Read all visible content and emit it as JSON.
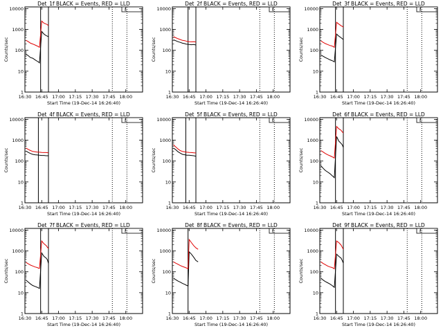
{
  "figure": {
    "xlabel": "Start Time (19-Dec-14 16:26:40)",
    "ylabel": "Counts/sec",
    "legend_mark": "L",
    "x_ticks": [
      "16:30",
      "16:45",
      "17:00",
      "17:15",
      "17:30",
      "17:45",
      "18:00"
    ],
    "y_ticks": [
      "1",
      "10",
      "100",
      "1000",
      "10000"
    ],
    "colors": {
      "events": "#000000",
      "lld": "#e00000"
    }
  },
  "chart_data": [
    {
      "type": "line",
      "title": "Det_1f BLACK = Events, RED = LLD",
      "xlim": [
        "16:30",
        "18:15"
      ],
      "ylim": [
        1,
        12000
      ],
      "yscale": "log",
      "x": [
        "16:31",
        "16:33",
        "16:35",
        "16:37",
        "16:39",
        "16:41",
        "16:42",
        "16:43",
        "16:45",
        "16:47",
        "16:49",
        "16:50",
        "16:51"
      ],
      "series": [
        {
          "name": "Events",
          "values": [
            65,
            55,
            45,
            42,
            35,
            30,
            28,
            25,
            800,
            600,
            500,
            480,
            450
          ]
        },
        {
          "name": "LLD",
          "values": [
            300,
            260,
            220,
            200,
            180,
            160,
            150,
            140,
            2500,
            2000,
            1800,
            1700,
            1500
          ]
        }
      ],
      "vlines_solid": [
        "16:44",
        "16:51"
      ],
      "vlines_dotted": [
        "17:48",
        "18:01"
      ]
    },
    {
      "type": "line",
      "title": "Det_2f BLACK = Events, RED = LLD",
      "xlim": [
        "16:30",
        "18:15"
      ],
      "ylim": [
        1,
        12000
      ],
      "yscale": "log",
      "x": [
        "16:31",
        "16:33",
        "16:35",
        "16:37",
        "16:39",
        "16:41",
        "16:42",
        "16:43",
        "16:45",
        "16:47",
        "16:49",
        "16:50",
        "16:51"
      ],
      "series": [
        {
          "name": "Events",
          "values": [
            320,
            290,
            260,
            240,
            220,
            210,
            200,
            195,
            190,
            185,
            190,
            185,
            180
          ]
        },
        {
          "name": "LLD",
          "values": [
            450,
            400,
            360,
            330,
            300,
            290,
            280,
            270,
            260,
            255,
            260,
            255,
            250
          ]
        }
      ],
      "vlines_solid": [
        "16:44",
        "16:51"
      ],
      "vlines_dotted": [
        "17:48",
        "18:01"
      ]
    },
    {
      "type": "line",
      "title": "Det_3f BLACK = Events, RED = LLD",
      "xlim": [
        "16:30",
        "18:15"
      ],
      "ylim": [
        1,
        12000
      ],
      "yscale": "log",
      "x": [
        "16:31",
        "16:33",
        "16:35",
        "16:37",
        "16:39",
        "16:41",
        "16:42",
        "16:43",
        "16:45",
        "16:47",
        "16:49",
        "16:50",
        "16:51"
      ],
      "series": [
        {
          "name": "Events",
          "values": [
            60,
            52,
            45,
            40,
            35,
            32,
            30,
            28,
            600,
            480,
            400,
            360,
            330
          ]
        },
        {
          "name": "LLD",
          "values": [
            280,
            240,
            210,
            190,
            170,
            160,
            150,
            140,
            2200,
            1800,
            1500,
            1400,
            1300
          ]
        }
      ],
      "vlines_solid": [
        "16:44",
        "16:51"
      ],
      "vlines_dotted": [
        "17:48",
        "18:01"
      ]
    },
    {
      "type": "line",
      "title": "Det_4f BLACK = Events, RED = LLD",
      "xlim": [
        "16:30",
        "18:15"
      ],
      "ylim": [
        1,
        12000
      ],
      "yscale": "log",
      "x": [
        "16:31",
        "16:33",
        "16:35",
        "16:37",
        "16:39",
        "16:41",
        "16:43",
        "16:45",
        "16:47",
        "16:49",
        "16:51"
      ],
      "series": [
        {
          "name": "Events",
          "values": [
            300,
            260,
            230,
            210,
            200,
            195,
            190,
            185,
            185,
            180,
            180
          ]
        },
        {
          "name": "LLD",
          "values": [
            420,
            360,
            320,
            290,
            280,
            270,
            265,
            260,
            255,
            255,
            250
          ]
        }
      ],
      "vlines_solid": [
        "16:42",
        "16:51"
      ],
      "vlines_dotted": [
        "17:48",
        "18:01"
      ]
    },
    {
      "type": "line",
      "title": "Det_5f BLACK = Events, RED = LLD",
      "xlim": [
        "16:30",
        "18:15"
      ],
      "ylim": [
        1,
        12000
      ],
      "yscale": "log",
      "x": [
        "16:31",
        "16:33",
        "16:35",
        "16:37",
        "16:39",
        "16:41",
        "16:43",
        "16:45",
        "16:47",
        "16:49",
        "16:51"
      ],
      "series": [
        {
          "name": "Events",
          "values": [
            420,
            350,
            280,
            240,
            210,
            200,
            190,
            190,
            185,
            180,
            170
          ]
        },
        {
          "name": "LLD",
          "values": [
            600,
            480,
            380,
            320,
            290,
            275,
            265,
            260,
            255,
            250,
            245
          ]
        }
      ],
      "vlines_solid": [
        "16:42",
        "16:51"
      ],
      "vlines_dotted": [
        "17:48",
        "18:01"
      ]
    },
    {
      "type": "line",
      "title": "Det_6f BLACK = Events, RED = LLD",
      "xlim": [
        "16:30",
        "18:15"
      ],
      "ylim": [
        1,
        12000
      ],
      "yscale": "log",
      "x": [
        "16:31",
        "16:33",
        "16:35",
        "16:37",
        "16:39",
        "16:41",
        "16:42",
        "16:43",
        "16:45",
        "16:47",
        "16:49",
        "16:50",
        "16:51"
      ],
      "series": [
        {
          "name": "Events",
          "values": [
            60,
            45,
            35,
            30,
            25,
            20,
            18,
            16,
            1500,
            900,
            700,
            600,
            450
          ]
        },
        {
          "name": "LLD",
          "values": [
            320,
            270,
            230,
            200,
            180,
            160,
            150,
            140,
            4500,
            3500,
            3000,
            2500,
            2200
          ]
        }
      ],
      "vlines_solid": [
        "16:44",
        "16:51"
      ],
      "vlines_dotted": [
        "17:48",
        "18:01"
      ]
    },
    {
      "type": "line",
      "title": "Det_7f BLACK = Events, RED = LLD",
      "xlim": [
        "16:30",
        "18:15"
      ],
      "ylim": [
        1,
        12000
      ],
      "yscale": "log",
      "x": [
        "16:31",
        "16:33",
        "16:35",
        "16:37",
        "16:39",
        "16:41",
        "16:42",
        "16:43",
        "16:45",
        "16:47",
        "16:49",
        "16:50",
        "16:51"
      ],
      "series": [
        {
          "name": "Events",
          "values": [
            40,
            32,
            26,
            22,
            20,
            18,
            17,
            16,
            800,
            550,
            450,
            380,
            250
          ]
        },
        {
          "name": "LLD",
          "values": [
            280,
            240,
            210,
            190,
            170,
            160,
            150,
            145,
            3000,
            2200,
            1800,
            1500,
            1300
          ]
        }
      ],
      "vlines_solid": [
        "16:44",
        "16:51"
      ],
      "vlines_dotted": [
        "17:48",
        "18:01"
      ]
    },
    {
      "type": "line",
      "title": "Det_8f BLACK = Events, RED = LLD",
      "xlim": [
        "16:30",
        "18:15"
      ],
      "ylim": [
        1,
        12000
      ],
      "yscale": "log",
      "x": [
        "16:31",
        "16:33",
        "16:35",
        "16:37",
        "16:39",
        "16:41",
        "16:43",
        "16:44",
        "16:45",
        "16:47",
        "16:49",
        "16:51",
        "16:53"
      ],
      "series": [
        {
          "name": "Events",
          "values": [
            50,
            42,
            36,
            32,
            28,
            25,
            22,
            21,
            900,
            700,
            500,
            350,
            300
          ]
        },
        {
          "name": "LLD",
          "values": [
            300,
            260,
            230,
            200,
            180,
            165,
            150,
            140,
            3500,
            2500,
            1800,
            1400,
            1200
          ]
        }
      ],
      "vlines_solid": [
        "16:44"
      ],
      "vlines_dotted": [
        "17:48",
        "18:01"
      ]
    },
    {
      "type": "line",
      "title": "Det_9f BLACK = Events, RED = LLD",
      "xlim": [
        "16:30",
        "18:15"
      ],
      "ylim": [
        1,
        12000
      ],
      "yscale": "log",
      "x": [
        "16:31",
        "16:33",
        "16:35",
        "16:37",
        "16:39",
        "16:41",
        "16:42",
        "16:43",
        "16:45",
        "16:47",
        "16:49",
        "16:50",
        "16:51"
      ],
      "series": [
        {
          "name": "Events",
          "values": [
            50,
            40,
            34,
            30,
            26,
            22,
            20,
            18,
            700,
            550,
            450,
            350,
            260
          ]
        },
        {
          "name": "LLD",
          "values": [
            300,
            250,
            220,
            190,
            170,
            160,
            150,
            140,
            3000,
            2500,
            1900,
            1500,
            1200
          ]
        }
      ],
      "vlines_solid": [
        "16:44",
        "16:51"
      ],
      "vlines_dotted": [
        "17:48",
        "18:01"
      ]
    }
  ]
}
